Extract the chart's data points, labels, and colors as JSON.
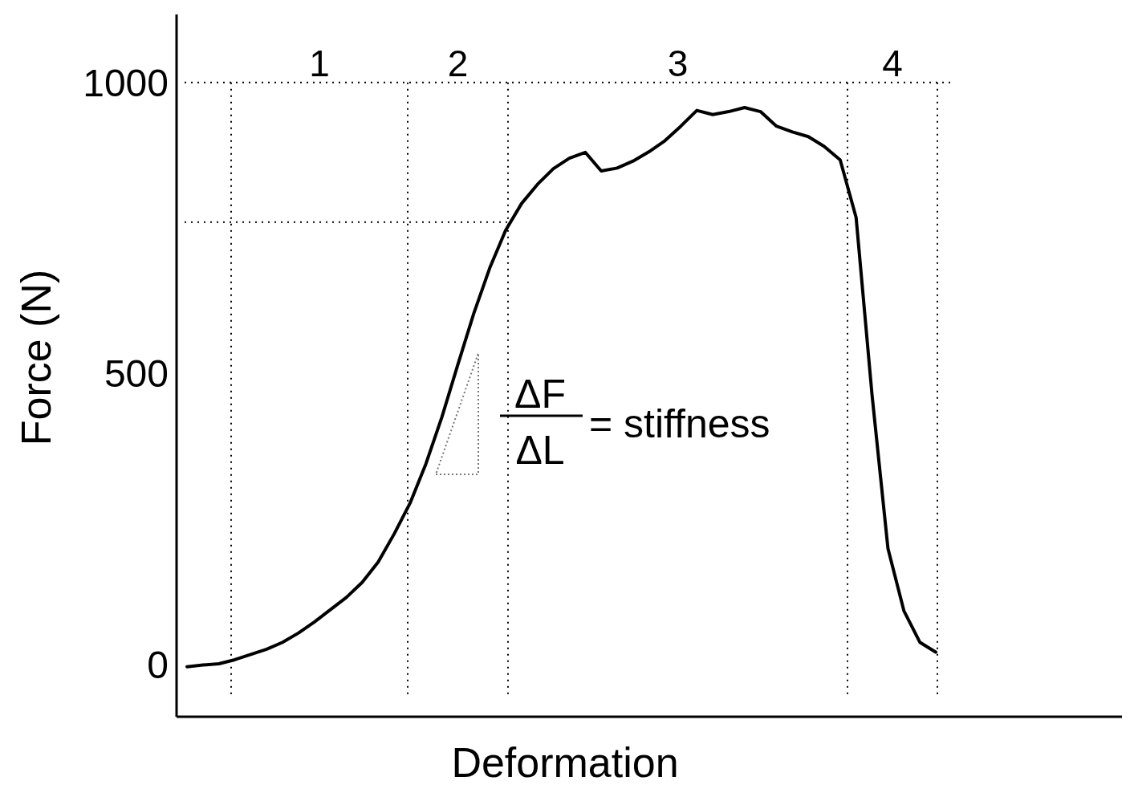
{
  "chart_data": {
    "type": "line",
    "xlabel": "Deformation",
    "ylabel": "Force (N)",
    "ylim": [
      -90,
      1117
    ],
    "yticks": [
      0,
      500,
      1000
    ],
    "grid": "x",
    "marker": "none",
    "line_style": "solid",
    "annotations": [
      "1",
      "2",
      "3",
      "4",
      "ΔF",
      "ΔL",
      "= stiffness"
    ],
    "ref_lines": [
      {
        "axis": "y",
        "value": 1000,
        "line_style": "dotted"
      },
      {
        "axis": "y",
        "value": 760,
        "line_style": "dotted"
      }
    ],
    "categories": [
      null,
      null,
      null,
      null,
      null,
      null,
      null,
      null,
      null,
      null,
      null,
      null,
      null,
      null,
      null,
      null,
      null,
      null,
      null,
      null,
      null,
      null,
      null,
      null,
      null,
      null,
      null,
      null,
      null,
      null,
      null,
      null,
      null,
      null,
      null,
      null,
      null,
      null,
      null,
      null,
      null,
      null,
      null,
      null,
      null,
      null,
      null,
      null
    ],
    "series": [
      {
        "color": "#000000",
        "values": [
          -4,
          -1,
          1,
          8,
          17,
          26,
          38,
          54,
          73,
          94,
          115,
          141,
          176,
          224,
          277,
          345,
          425,
          515,
          603,
          681,
          746,
          792,
          825,
          852,
          870,
          880,
          848,
          853,
          865,
          881,
          900,
          925,
          952,
          945,
          950,
          957,
          950,
          925,
          915,
          907,
          890,
          867,
          768,
          463,
          199,
          92,
          38,
          21
        ]
      }
    ]
  }
}
